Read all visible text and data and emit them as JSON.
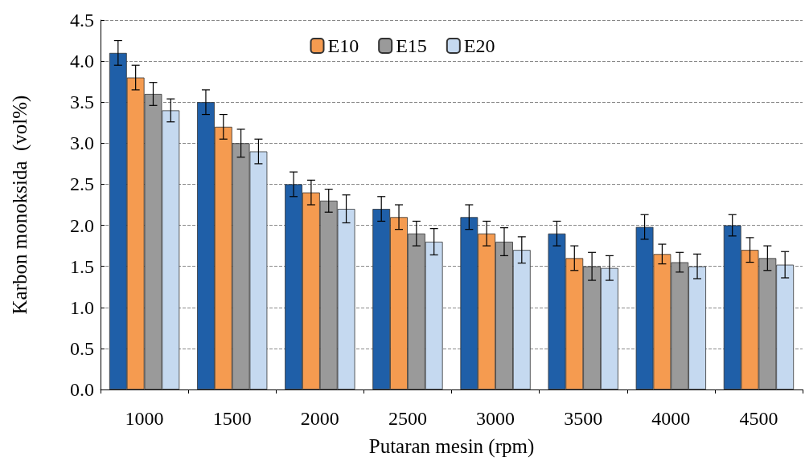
{
  "chart_data": {
    "type": "bar",
    "xlabel": "Putaran mesin (rpm)",
    "ylabel": "Karbon monoksida  (vol%)",
    "categories": [
      "1000",
      "1500",
      "2000",
      "2500",
      "3000",
      "3500",
      "4000",
      "4500"
    ],
    "series": [
      {
        "color": "#1f5fa8",
        "values": [
          4.1,
          3.5,
          2.5,
          2.2,
          2.1,
          1.9,
          1.98,
          2.0
        ],
        "errors": [
          0.15,
          0.15,
          0.15,
          0.15,
          0.15,
          0.15,
          0.15,
          0.13
        ]
      },
      {
        "name": "E10",
        "color": "#f59b50",
        "values": [
          3.8,
          3.2,
          2.4,
          2.1,
          1.9,
          1.6,
          1.65,
          1.7
        ],
        "errors": [
          0.15,
          0.15,
          0.15,
          0.15,
          0.15,
          0.15,
          0.12,
          0.15
        ]
      },
      {
        "name": "E15",
        "color": "#9a9a9a",
        "values": [
          3.6,
          3.0,
          2.3,
          1.9,
          1.8,
          1.5,
          1.55,
          1.6
        ],
        "errors": [
          0.14,
          0.17,
          0.14,
          0.15,
          0.17,
          0.17,
          0.12,
          0.15
        ]
      },
      {
        "name": "E20",
        "color": "#c5d9f0",
        "values": [
          3.4,
          2.9,
          2.2,
          1.8,
          1.7,
          1.48,
          1.5,
          1.52
        ],
        "errors": [
          0.14,
          0.15,
          0.17,
          0.16,
          0.16,
          0.15,
          0.15,
          0.16
        ]
      }
    ],
    "ylim": [
      0,
      4.5
    ],
    "yticks": [
      {
        "value": 0,
        "label": "0.0"
      },
      {
        "value": 0.5,
        "label": "0.5"
      },
      {
        "value": 1,
        "label": "1.0"
      },
      {
        "value": 1.5,
        "label": "1.5"
      },
      {
        "value": 2,
        "label": "2.0"
      },
      {
        "value": 2.5,
        "label": "2.5"
      },
      {
        "value": 3,
        "label": "3.0"
      },
      {
        "value": 3.5,
        "label": "3.5"
      },
      {
        "value": 4,
        "label": "4.0"
      },
      {
        "value": 4.5,
        "label": "4.5"
      }
    ],
    "grid": "y",
    "legend": "top"
  }
}
